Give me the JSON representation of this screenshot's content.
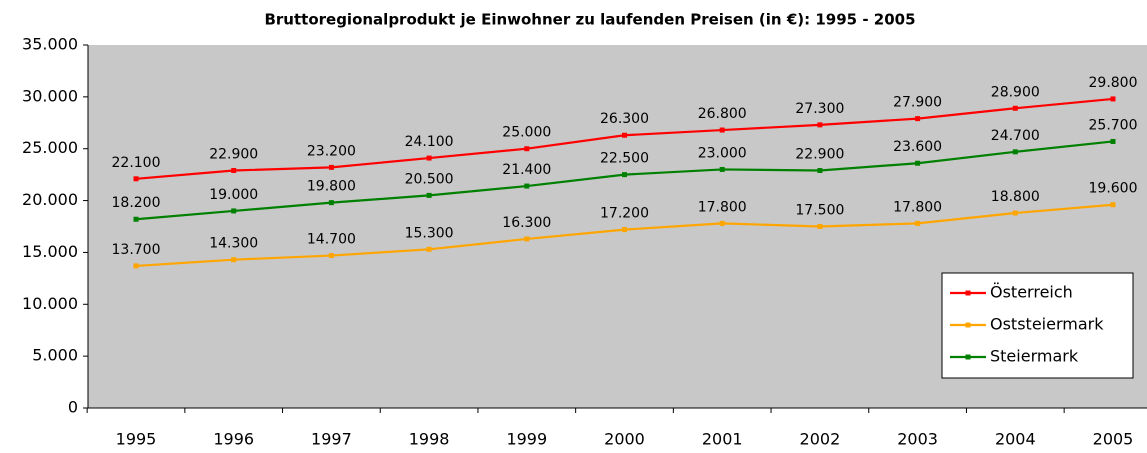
{
  "chart_data": {
    "type": "line",
    "title": "Bruttoregionalprodukt je Einwohner zu laufenden Preisen (in €): 1995 - 2005",
    "categories": [
      "1995",
      "1996",
      "1997",
      "1998",
      "1999",
      "2000",
      "2001",
      "2002",
      "2003",
      "2004",
      "2005"
    ],
    "series": [
      {
        "name": "Österreich",
        "color": "#ff0000",
        "values": [
          22100,
          22900,
          23200,
          24100,
          25000,
          26300,
          26800,
          27300,
          27900,
          28900,
          29800
        ],
        "value_labels": [
          "22.100",
          "22.900",
          "23.200",
          "24.100",
          "25.000",
          "26.300",
          "26.800",
          "27.300",
          "27.900",
          "28.900",
          "29.800"
        ]
      },
      {
        "name": "Oststeiermark",
        "color": "#ffa500",
        "values": [
          13700,
          14300,
          14700,
          15300,
          16300,
          17200,
          17800,
          17500,
          17800,
          18800,
          19600
        ],
        "value_labels": [
          "13.700",
          "14.300",
          "14.700",
          "15.300",
          "16.300",
          "17.200",
          "17.800",
          "17.500",
          "17.800",
          "18.800",
          "19.600"
        ]
      },
      {
        "name": "Steiermark",
        "color": "#008000",
        "values": [
          18200,
          19000,
          19800,
          20500,
          21400,
          22500,
          23000,
          22900,
          23600,
          24700,
          25700
        ],
        "value_labels": [
          "18.200",
          "19.000",
          "19.800",
          "20.500",
          "21.400",
          "22.500",
          "23.000",
          "22.900",
          "23.600",
          "24.700",
          "25.700"
        ]
      }
    ],
    "ylim": [
      0,
      35000
    ],
    "yticks": [
      {
        "value": 0,
        "label": "0"
      },
      {
        "value": 5000,
        "label": "5.000"
      },
      {
        "value": 10000,
        "label": "10.000"
      },
      {
        "value": 15000,
        "label": "15.000"
      },
      {
        "value": 20000,
        "label": "20.000"
      },
      {
        "value": 25000,
        "label": "25.000"
      },
      {
        "value": 30000,
        "label": "30.000"
      },
      {
        "value": 35000,
        "label": "35.000"
      }
    ],
    "legend": "lower-right",
    "background": "#c8c8c8"
  }
}
